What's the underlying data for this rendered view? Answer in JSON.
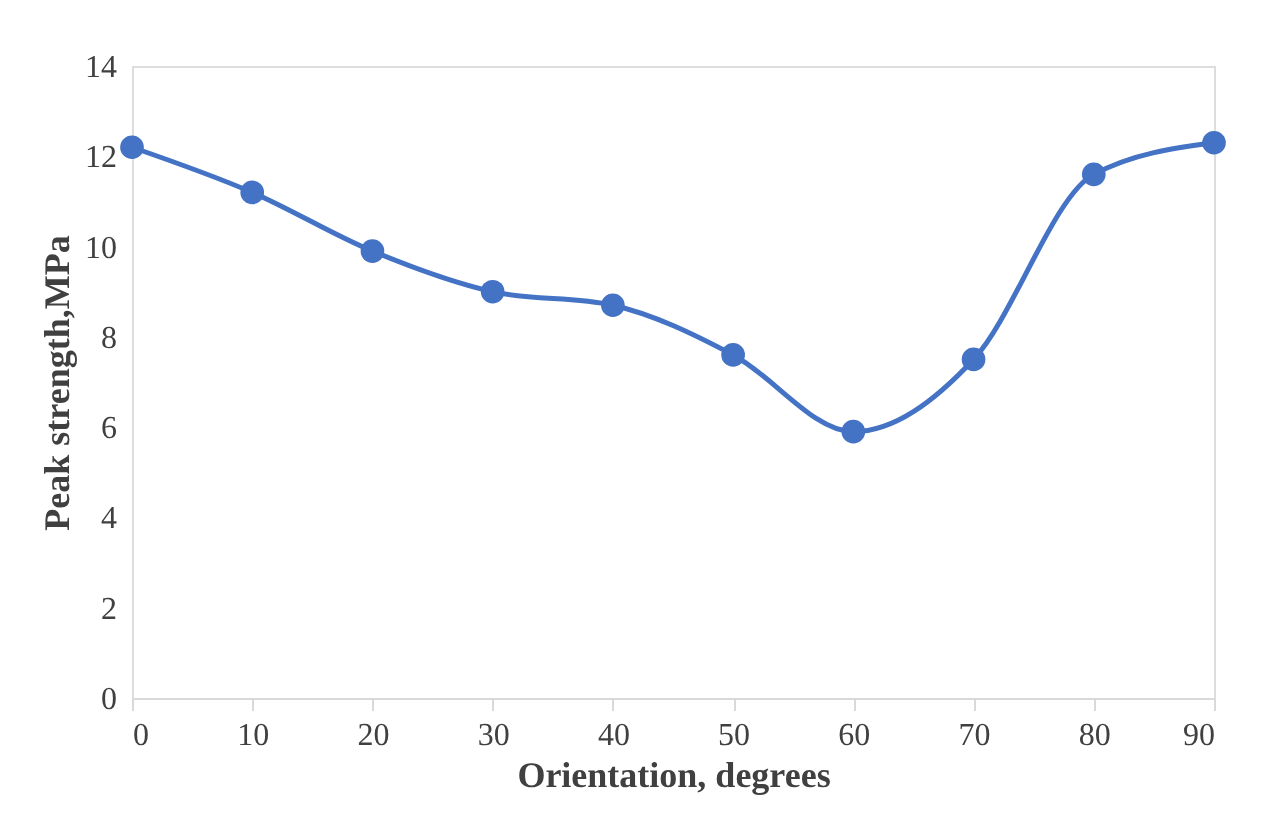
{
  "chart_data": {
    "type": "line",
    "xlabel": "Orientation, degrees",
    "ylabel": "Peak strength,MPa",
    "x": [
      0,
      10,
      20,
      30,
      40,
      50,
      60,
      70,
      80,
      90
    ],
    "series": [
      {
        "color": "#4472c4",
        "values": [
          12.2,
          11.2,
          9.9,
          9.0,
          8.7,
          7.6,
          5.9,
          7.5,
          11.6,
          12.3
        ]
      }
    ],
    "xlim": [
      0,
      90
    ],
    "xticks": [
      0,
      10,
      20,
      30,
      40,
      50,
      60,
      70,
      80,
      90
    ],
    "ylim": [
      0,
      14
    ],
    "yticks": [
      0,
      2,
      4,
      6,
      8,
      10,
      12,
      14
    ],
    "grid": false,
    "marker": "circle",
    "line_style": "solid"
  }
}
